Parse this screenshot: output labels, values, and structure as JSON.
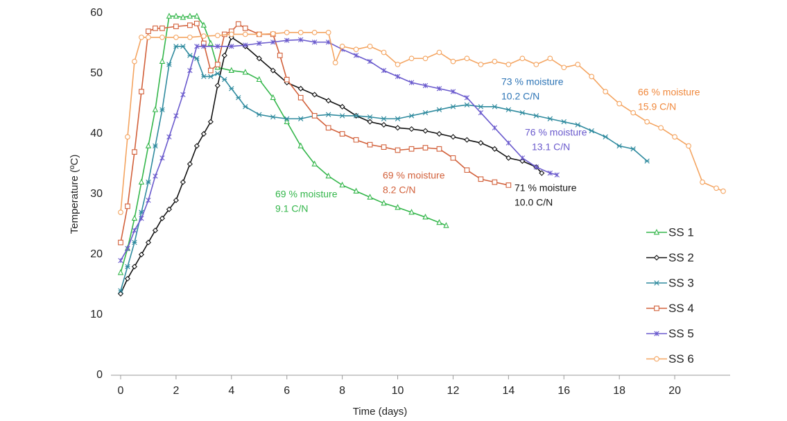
{
  "chart_data": {
    "type": "line",
    "xlabel": "Time (days)",
    "ylabel": "Temperature (ºC)",
    "xlim": [
      -0.35,
      22
    ],
    "ylim": [
      0,
      60
    ],
    "xticks": [
      0,
      2,
      4,
      6,
      8,
      10,
      12,
      14,
      16,
      18,
      20
    ],
    "yticks": [
      0,
      10,
      20,
      30,
      40,
      50,
      60
    ],
    "legend": "right",
    "series": [
      {
        "name": "SS 1",
        "color": "#33b64a",
        "marker": "triangle",
        "x": [
          0,
          0.25,
          0.5,
          0.75,
          1,
          1.25,
          1.5,
          1.75,
          2,
          2.25,
          2.5,
          2.75,
          3,
          3.25,
          3.5,
          4,
          4.5,
          5,
          5.5,
          6,
          6.5,
          7,
          7.5,
          8,
          8.5,
          9,
          9.5,
          10,
          10.5,
          11,
          11.5,
          11.75
        ],
        "values": [
          17,
          21,
          26,
          32,
          38,
          44,
          52,
          59.5,
          59.5,
          59.3,
          59.5,
          59.5,
          58,
          55,
          51,
          50.5,
          50.2,
          49,
          46,
          42,
          38,
          35,
          33,
          31.5,
          30.5,
          29.5,
          28.5,
          27.8,
          27,
          26.2,
          25.3,
          24.8
        ]
      },
      {
        "name": "SS 2",
        "color": "#111111",
        "marker": "diamond",
        "x": [
          0,
          0.25,
          0.5,
          0.75,
          1,
          1.25,
          1.5,
          1.75,
          2,
          2.25,
          2.5,
          2.75,
          3,
          3.25,
          3.5,
          3.75,
          4,
          4.5,
          5,
          5.5,
          6,
          6.5,
          7,
          7.5,
          8,
          8.5,
          9,
          9.5,
          10,
          10.5,
          11,
          11.5,
          12,
          12.5,
          13,
          13.5,
          14,
          14.5,
          15,
          15.2
        ],
        "values": [
          13.5,
          16,
          18,
          20,
          22,
          24,
          26,
          27.5,
          29,
          32,
          35,
          38,
          40,
          42,
          48,
          53,
          56,
          54.5,
          52.5,
          50.5,
          48.5,
          47.5,
          46.5,
          45.5,
          44.5,
          43,
          42,
          41.5,
          41,
          40.8,
          40.5,
          40,
          39.5,
          39,
          38.5,
          37.5,
          36,
          35.5,
          34.5,
          33.5
        ]
      },
      {
        "name": "SS 3",
        "color": "#2e8a9e",
        "marker": "asterisk",
        "x": [
          0,
          0.25,
          0.5,
          0.75,
          1,
          1.25,
          1.5,
          1.75,
          2,
          2.25,
          2.5,
          2.75,
          3,
          3.25,
          3.5,
          3.75,
          4,
          4.25,
          4.5,
          5,
          5.5,
          6,
          6.5,
          7,
          7.5,
          8,
          8.5,
          9,
          9.5,
          10,
          10.5,
          11,
          11.5,
          12,
          12.5,
          13,
          13.5,
          14,
          14.5,
          15,
          15.5,
          16,
          16.5,
          17,
          17.5,
          18,
          18.5,
          19
        ],
        "values": [
          14,
          18,
          22,
          27,
          32,
          38,
          44,
          51.5,
          54.5,
          54.5,
          53,
          52.5,
          49.5,
          49.5,
          50,
          49,
          47.5,
          46,
          44.5,
          43.2,
          42.8,
          42.5,
          42.5,
          43,
          43.2,
          43,
          43,
          42.8,
          42.5,
          42.5,
          43,
          43.5,
          44,
          44.5,
          44.8,
          44.5,
          44.5,
          44,
          43.5,
          43,
          42.5,
          42,
          41.5,
          40.5,
          39.5,
          38,
          37.5,
          35.5
        ]
      },
      {
        "name": "SS 4",
        "color": "#d2603a",
        "marker": "square",
        "x": [
          0,
          0.25,
          0.5,
          0.75,
          1,
          1.25,
          1.5,
          2,
          2.5,
          2.75,
          3,
          3.25,
          3.5,
          3.75,
          4,
          4.25,
          4.5,
          5,
          5.5,
          5.75,
          6,
          6.5,
          7,
          7.5,
          8,
          8.5,
          9,
          9.5,
          10,
          10.5,
          11,
          11.5,
          12,
          12.5,
          13,
          13.5,
          14
        ],
        "values": [
          22,
          28,
          37,
          47,
          57,
          57.5,
          57.5,
          57.8,
          58,
          58.3,
          55,
          50.5,
          51.5,
          56.5,
          57,
          58.2,
          57.5,
          56.5,
          56.5,
          53,
          49,
          46,
          43,
          41,
          40,
          39,
          38.2,
          37.8,
          37.3,
          37.5,
          37.7,
          37.5,
          36,
          34,
          32.5,
          32,
          31.5
        ]
      },
      {
        "name": "SS 5",
        "color": "#6a5acd",
        "marker": "x",
        "x": [
          0,
          0.25,
          0.5,
          0.75,
          1,
          1.25,
          1.5,
          1.75,
          2,
          2.25,
          2.5,
          2.75,
          3,
          3.5,
          4,
          4.5,
          5,
          5.5,
          6,
          6.5,
          7,
          7.5,
          8,
          8.5,
          9,
          9.5,
          10,
          10.5,
          11,
          11.5,
          12,
          12.5,
          13,
          13.5,
          14,
          14.5,
          15,
          15.5,
          15.75
        ],
        "values": [
          19,
          21,
          24,
          26,
          29,
          33,
          36,
          39.5,
          43,
          46.5,
          50.5,
          54.5,
          54.5,
          54.5,
          54.5,
          54.7,
          55,
          55.2,
          55.5,
          55.6,
          55.2,
          55.2,
          54,
          53,
          52,
          50.5,
          49.5,
          48.5,
          48,
          47.5,
          47,
          46,
          43.5,
          41,
          38.5,
          36,
          34.5,
          33.5,
          33.2
        ]
      },
      {
        "name": "SS 6",
        "color": "#f4a460",
        "marker": "circle",
        "x": [
          0,
          0.25,
          0.5,
          0.75,
          1,
          1.5,
          2,
          2.5,
          3,
          3.5,
          4,
          4.5,
          5,
          5.5,
          6,
          6.5,
          7,
          7.5,
          7.75,
          8,
          8.5,
          9,
          9.5,
          10,
          10.5,
          11,
          11.5,
          12,
          12.5,
          13,
          13.5,
          14,
          14.5,
          15,
          15.5,
          16,
          16.5,
          17,
          17.5,
          18,
          18.5,
          19,
          19.5,
          20,
          20.5,
          21,
          21.5,
          21.75
        ],
        "values": [
          27,
          39.5,
          52,
          56,
          56,
          56,
          56,
          56,
          56.2,
          56.3,
          56.5,
          56.5,
          56.5,
          56.6,
          56.8,
          56.8,
          56.8,
          56.8,
          51.8,
          54.5,
          54,
          54.5,
          53.5,
          51.5,
          52.5,
          52.5,
          53.5,
          52,
          52.5,
          51.5,
          52,
          51.5,
          52.5,
          51.5,
          52.5,
          51,
          51.5,
          49.5,
          47,
          45,
          43.5,
          42,
          41,
          39.5,
          38,
          32,
          31,
          30.5
        ]
      }
    ],
    "annotations": [
      {
        "lines": [
          "69 % moisture",
          "9.1 C/N"
        ],
        "color": "#33b64a"
      },
      {
        "lines": [
          "69 % moisture",
          "8.2 C/N"
        ],
        "color": "#d2603a"
      },
      {
        "lines": [
          "71 % moisture",
          "10.0 C/N"
        ],
        "color": "#111111"
      },
      {
        "lines": [
          "73 % moisture",
          "10.2 C/N"
        ],
        "color": "#2e75b6"
      },
      {
        "lines": [
          "76 % moisture",
          "13.1 C/N"
        ],
        "color": "#6a5acd"
      },
      {
        "lines": [
          "66 % moisture",
          "15.9 C/N"
        ],
        "color": "#f0883c"
      }
    ]
  }
}
